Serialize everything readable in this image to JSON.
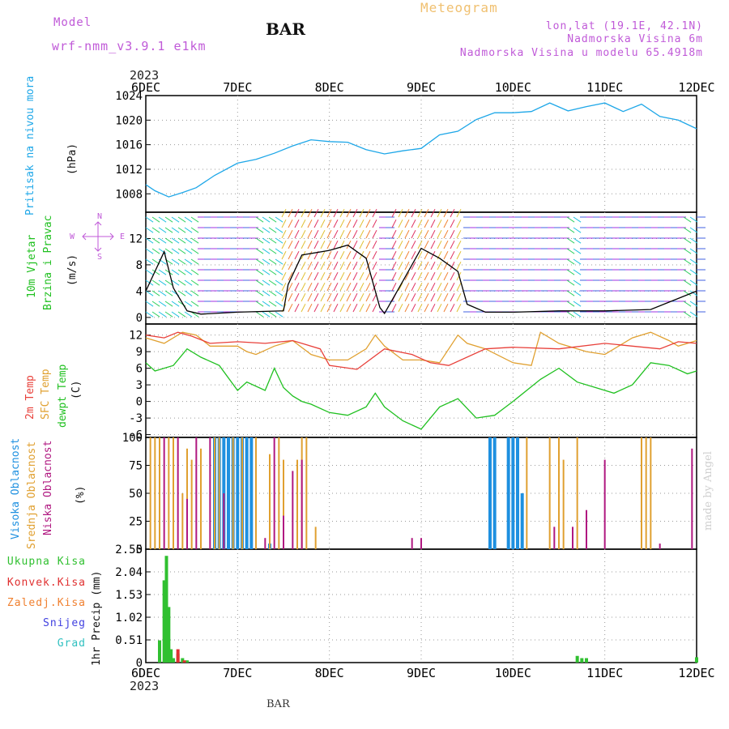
{
  "header": {
    "model_label": "Model",
    "model_name": "wrf-nmm_v3.9.1 e1km",
    "title": "BAR",
    "meteogram_label": "Meteogram",
    "location": "lon,lat (19.1E, 42.1N)",
    "elevation": "Nadmorska Visina 6m",
    "model_elevation": "Nadmorska Visina u modelu 65.4918m",
    "year_top": "2023",
    "year_bottom": "2023",
    "footer": "BAR",
    "watermark": "made by Angel"
  },
  "colors": {
    "pressure": "#1ea7e8",
    "t2m": "#e8403a",
    "sfc": "#e0a030",
    "dewpt": "#20c020",
    "high_cloud": "#1e90e0",
    "mid_cloud": "#e0a030",
    "low_cloud": "#b01880",
    "total_precip": "#30c030",
    "conv_precip": "#e03030",
    "label_purple": "#c05ad8"
  },
  "chart_data": [
    {
      "type": "line",
      "panel": "pressure",
      "x_tick_labels": [
        "6DEC",
        "7DEC",
        "8DEC",
        "9DEC",
        "10DEC",
        "11DEC",
        "12DEC"
      ],
      "ylabel_left": "Pritisak na nivou mora",
      "ylabel_unit": "(hPa)",
      "ylim": [
        1005,
        1024
      ],
      "y_ticks": [
        1008,
        1012,
        1016,
        1020,
        1024
      ],
      "grid": true,
      "series": [
        {
          "x": [
            0,
            0.1,
            0.25,
            0.4,
            0.55,
            0.75,
            1.0,
            1.2,
            1.4,
            1.6,
            1.8,
            2.0,
            2.2,
            2.4,
            2.6,
            2.8,
            3.0,
            3.2,
            3.4,
            3.6,
            3.8,
            4.0,
            4.2,
            4.4,
            4.6,
            4.8,
            5.0,
            5.2,
            5.4,
            5.6,
            5.8,
            6.0
          ],
          "values": [
            1009.5,
            1008.5,
            1007.5,
            1008.2,
            1009.0,
            1011.0,
            1013.0,
            1013.6,
            1014.6,
            1015.8,
            1016.8,
            1016.5,
            1016.4,
            1015.2,
            1014.5,
            1015.0,
            1015.4,
            1017.6,
            1018.2,
            1020.1,
            1021.2,
            1021.2,
            1021.4,
            1022.8,
            1021.5,
            1022.2,
            1022.8,
            1021.4,
            1022.6,
            1020.6,
            1020.0,
            1018.6
          ]
        }
      ]
    },
    {
      "type": "line",
      "panel": "wind",
      "ylabel_left_1": "10m Vjetar",
      "ylabel_left_2": "Brzina i Pravac",
      "ylabel_unit": "(m/s)",
      "compass": [
        "N",
        "S",
        "E",
        "W"
      ],
      "ylim": [
        -1,
        16
      ],
      "y_ticks": [
        0,
        4,
        8,
        12
      ],
      "grid": true,
      "series": [
        {
          "name": "speed",
          "x": [
            0,
            0.2,
            0.3,
            0.45,
            0.6,
            1.0,
            1.5,
            1.55,
            1.7,
            2.0,
            2.2,
            2.4,
            2.55,
            2.6,
            2.8,
            3.0,
            3.2,
            3.4,
            3.5,
            3.7,
            4.0,
            4.5,
            5.0,
            5.5,
            6.0
          ],
          "values": [
            4.0,
            10.0,
            4.5,
            1.0,
            0.5,
            0.8,
            1.0,
            5.0,
            9.5,
            10.2,
            11.0,
            9.0,
            1.5,
            0.6,
            5.5,
            10.5,
            9.0,
            7.0,
            2.0,
            0.8,
            0.8,
            1.0,
            1.0,
            1.2,
            4.0
          ]
        }
      ]
    },
    {
      "type": "line",
      "panel": "temperature",
      "ylabel_left_1": "2m Temp",
      "ylabel_left_2": "SFC Temp",
      "ylabel_left_3": "dewpt Temp",
      "ylabel_unit": "(C)",
      "ylim": [
        -6.5,
        14
      ],
      "y_ticks": [
        -6,
        -3,
        0,
        3,
        6,
        9,
        12
      ],
      "grid": true,
      "series": [
        {
          "name": "2m Temp",
          "x": [
            0,
            0.2,
            0.35,
            0.5,
            0.7,
            1.0,
            1.3,
            1.6,
            1.9,
            2.0,
            2.3,
            2.6,
            2.9,
            3.1,
            3.3,
            3.7,
            4.0,
            4.5,
            5.0,
            5.3,
            5.6,
            5.8,
            6.0
          ],
          "values": [
            12.0,
            11.5,
            12.5,
            11.8,
            10.5,
            10.8,
            10.5,
            11.0,
            9.5,
            6.5,
            5.8,
            9.5,
            8.5,
            7.0,
            6.5,
            9.5,
            9.8,
            9.5,
            10.5,
            10.0,
            9.5,
            10.8,
            10.5
          ]
        },
        {
          "name": "SFC Temp",
          "x": [
            0,
            0.2,
            0.4,
            0.55,
            0.7,
            1.0,
            1.1,
            1.2,
            1.4,
            1.6,
            1.8,
            2.0,
            2.2,
            2.4,
            2.5,
            2.6,
            2.8,
            3.0,
            3.2,
            3.4,
            3.5,
            3.7,
            4.0,
            4.2,
            4.3,
            4.5,
            4.8,
            5.0,
            5.3,
            5.5,
            5.7,
            5.8,
            6.0
          ],
          "values": [
            11.5,
            10.5,
            12.5,
            12.0,
            10.0,
            10.0,
            9.0,
            8.5,
            10.0,
            11.0,
            8.5,
            7.5,
            7.5,
            9.5,
            12.0,
            10.0,
            7.5,
            7.5,
            7.0,
            12.0,
            10.5,
            9.5,
            7.0,
            6.5,
            12.5,
            10.5,
            9.0,
            8.5,
            11.5,
            12.5,
            11.0,
            10.0,
            11.0
          ]
        },
        {
          "name": "dewpt Temp",
          "x": [
            0,
            0.1,
            0.3,
            0.45,
            0.6,
            0.8,
            1.0,
            1.1,
            1.3,
            1.4,
            1.5,
            1.6,
            1.7,
            1.8,
            2.0,
            2.2,
            2.4,
            2.5,
            2.6,
            2.8,
            3.0,
            3.2,
            3.4,
            3.6,
            3.8,
            4.0,
            4.3,
            4.5,
            4.7,
            4.9,
            5.1,
            5.3,
            5.5,
            5.7,
            5.9,
            6.0
          ],
          "values": [
            7.0,
            5.5,
            6.5,
            9.5,
            8.0,
            6.5,
            2.0,
            3.5,
            2.0,
            6.0,
            2.5,
            1.0,
            0.0,
            -0.5,
            -2.0,
            -2.5,
            -1.0,
            1.5,
            -1.0,
            -3.5,
            -5.0,
            -1.0,
            0.5,
            -3.0,
            -2.5,
            0.0,
            4.0,
            6.0,
            3.5,
            2.5,
            1.5,
            3.0,
            7.0,
            6.5,
            5.0,
            5.5
          ]
        }
      ]
    },
    {
      "type": "bar",
      "panel": "cloud",
      "ylabel_left_1": "Visoka Oblacnost",
      "ylabel_left_2": "Srednja Oblacnost",
      "ylabel_left_3": "Niska Oblacnost",
      "ylabel_unit": "(%)",
      "ylim": [
        0,
        100
      ],
      "y_ticks": [
        0,
        25,
        50,
        75,
        100
      ],
      "grid": true,
      "series": [
        {
          "name": "Visoka Oblacnost",
          "x": [
            0.75,
            0.8,
            0.85,
            0.9,
            0.95,
            1.0,
            1.05,
            1.1,
            1.15,
            1.35,
            3.75,
            3.8,
            3.95,
            4.0,
            4.05,
            4.1
          ],
          "values": [
            100,
            100,
            100,
            100,
            100,
            100,
            100,
            100,
            100,
            5,
            100,
            100,
            100,
            100,
            100,
            50
          ]
        },
        {
          "name": "Srednja Oblacnost",
          "x": [
            0.05,
            0.1,
            0.15,
            0.25,
            0.3,
            0.4,
            0.45,
            0.5,
            0.6,
            0.75,
            0.8,
            0.95,
            1.05,
            1.2,
            1.35,
            1.45,
            1.5,
            1.65,
            1.7,
            1.75,
            1.85,
            4.15,
            4.4,
            4.5,
            4.55,
            4.7,
            5.4,
            5.45,
            5.5
          ],
          "values": [
            100,
            100,
            100,
            100,
            100,
            50,
            90,
            80,
            90,
            100,
            100,
            100,
            100,
            100,
            85,
            100,
            80,
            80,
            100,
            100,
            20,
            100,
            100,
            100,
            80,
            100,
            100,
            100,
            100
          ]
        },
        {
          "name": "Niska Oblacnost",
          "x": [
            0.2,
            0.35,
            0.45,
            0.55,
            0.7,
            0.85,
            1.3,
            1.4,
            1.5,
            1.6,
            1.7,
            2.9,
            3.0,
            4.45,
            4.65,
            4.8,
            5.0,
            5.6,
            5.95
          ],
          "values": [
            100,
            100,
            45,
            100,
            100,
            50,
            10,
            100,
            30,
            70,
            80,
            10,
            10,
            20,
            20,
            35,
            80,
            5,
            90
          ]
        }
      ]
    },
    {
      "type": "bar",
      "panel": "precip",
      "legend": [
        "Ukupna Kisa",
        "Konvek.Kisa",
        "Zaledj.Kisa",
        "Snijeg",
        "Grad"
      ],
      "ylabel_unit": "1hr Precip (mm)",
      "ylim": [
        0,
        2.55
      ],
      "y_ticks": [
        0,
        0.51,
        1.02,
        1.53,
        2.04,
        2.55
      ],
      "grid": true,
      "series": [
        {
          "name": "Ukupna Kisa",
          "x": [
            0.15,
            0.2,
            0.225,
            0.25,
            0.275,
            0.3,
            0.35,
            0.4,
            0.45,
            4.7,
            4.75,
            4.8,
            6.0
          ],
          "values": [
            0.5,
            1.85,
            2.4,
            1.25,
            0.3,
            0.1,
            0.2,
            0.1,
            0.05,
            0.15,
            0.1,
            0.1,
            0.12
          ]
        },
        {
          "name": "Konvek.Kisa",
          "x": [
            0.35,
            0.42
          ],
          "values": [
            0.3,
            0.05
          ]
        }
      ]
    }
  ]
}
